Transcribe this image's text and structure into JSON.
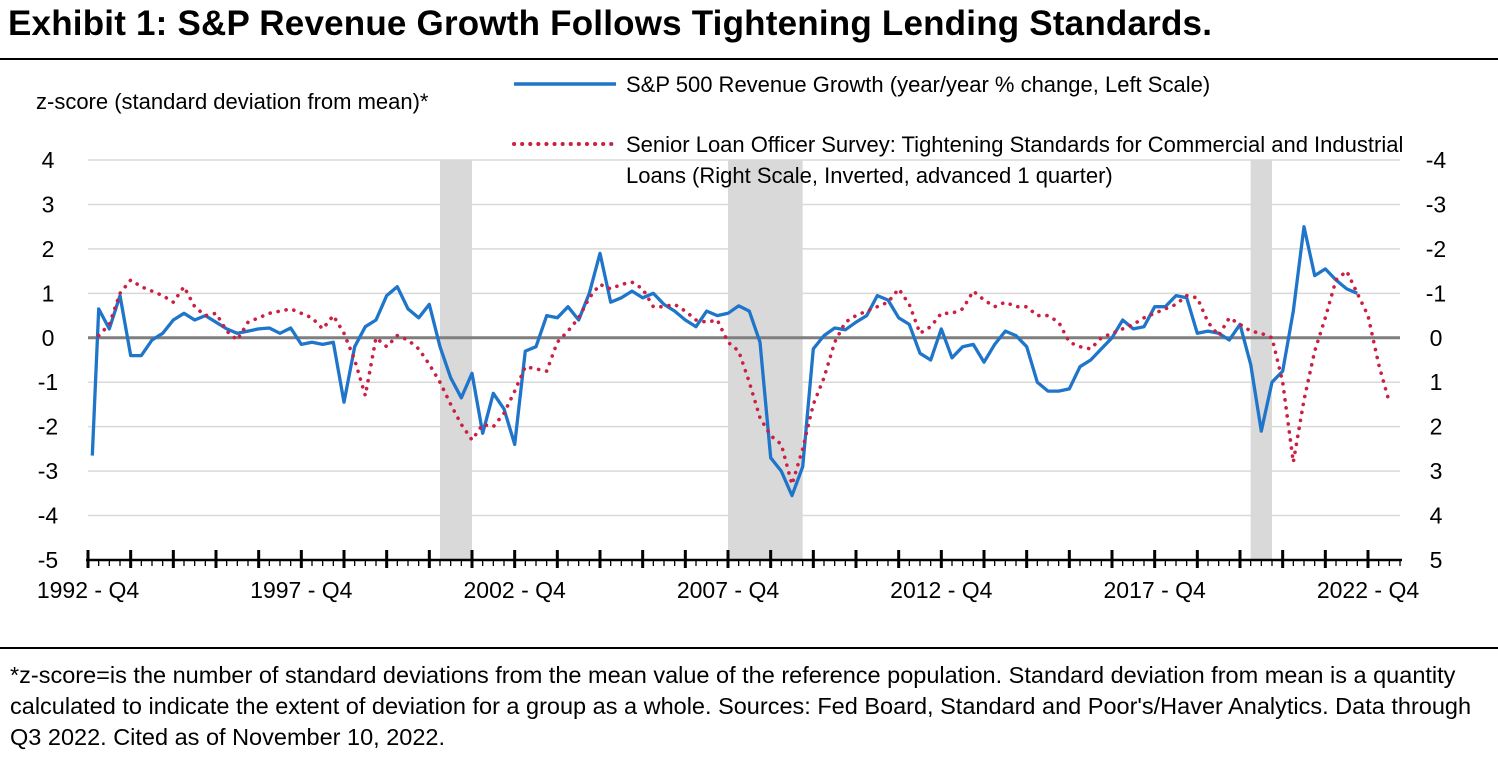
{
  "title": "Exhibit 1: S&P Revenue Growth Follows Tightening Lending Standards.",
  "footnote": "*z-score=is the number of standard deviations from the mean value of the reference population. Standard deviation from mean is a quantity calculated to indicate the extent of deviation for a group as a whole. Sources: Fed Board, Standard and Poor's/Haver Analytics. Data through Q3 2022. Cited as of November 10, 2022.",
  "colors": {
    "revenue": "#1f75c9",
    "survey": "#cc1f44",
    "zero_line": "#7f7f7f",
    "recession": "#d9d9d9",
    "grid": "#d9d9d9"
  },
  "chart_data": {
    "type": "line",
    "ylabel": "z-score (standard deviation from mean)*",
    "ylim": [
      -5,
      4
    ],
    "y2lim": [
      5,
      -4
    ],
    "y2_inverted": true,
    "grid": true,
    "legend_position": "top",
    "yticks": [
      "4",
      "3",
      "2",
      "1",
      "0",
      "-1",
      "-2",
      "-3",
      "-4",
      "-5"
    ],
    "y2ticks": [
      "-4",
      "-3",
      "-2",
      "-1",
      "0",
      "1",
      "2",
      "3",
      "4",
      "5"
    ],
    "xticks": [
      {
        "label": "1992 - Q4",
        "x": 1992.75
      },
      {
        "label": "1997 - Q4",
        "x": 1997.75
      },
      {
        "label": "2002 - Q4",
        "x": 2002.75
      },
      {
        "label": "2007 - Q4",
        "x": 2007.75
      },
      {
        "label": "2012 - Q4",
        "x": 2012.75
      },
      {
        "label": "2017 - Q4",
        "x": 2017.75
      },
      {
        "label": "2022 - Q4",
        "x": 2022.75
      }
    ],
    "xlim": [
      1992.75,
      2023.5
    ],
    "recessions": [
      [
        2001.0,
        2001.75
      ],
      [
        2007.75,
        2009.5
      ],
      [
        2020.0,
        2020.5
      ]
    ],
    "series": [
      {
        "name": "S&P 500 Revenue Growth (year/year % change, Left Scale)",
        "axis": "left",
        "style": "solid",
        "points": [
          [
            1992.85,
            -2.65
          ],
          [
            1993.0,
            0.65
          ],
          [
            1993.25,
            0.2
          ],
          [
            1993.5,
            0.95
          ],
          [
            1993.75,
            -0.4
          ],
          [
            1994.0,
            -0.4
          ],
          [
            1994.25,
            -0.05
          ],
          [
            1994.5,
            0.1
          ],
          [
            1994.75,
            0.4
          ],
          [
            1995.0,
            0.55
          ],
          [
            1995.25,
            0.4
          ],
          [
            1995.5,
            0.5
          ],
          [
            1995.75,
            0.35
          ],
          [
            1996.0,
            0.2
          ],
          [
            1996.25,
            0.1
          ],
          [
            1996.5,
            0.15
          ],
          [
            1996.75,
            0.2
          ],
          [
            1997.0,
            0.22
          ],
          [
            1997.25,
            0.1
          ],
          [
            1997.5,
            0.22
          ],
          [
            1997.75,
            -0.15
          ],
          [
            1998.0,
            -0.1
          ],
          [
            1998.25,
            -0.15
          ],
          [
            1998.5,
            -0.1
          ],
          [
            1998.75,
            -1.45
          ],
          [
            1999.0,
            -0.2
          ],
          [
            1999.25,
            0.25
          ],
          [
            1999.5,
            0.4
          ],
          [
            1999.75,
            0.95
          ],
          [
            2000.0,
            1.15
          ],
          [
            2000.25,
            0.65
          ],
          [
            2000.5,
            0.45
          ],
          [
            2000.75,
            0.75
          ],
          [
            2001.0,
            -0.2
          ],
          [
            2001.25,
            -0.9
          ],
          [
            2001.5,
            -1.35
          ],
          [
            2001.75,
            -0.8
          ],
          [
            2002.0,
            -2.15
          ],
          [
            2002.25,
            -1.25
          ],
          [
            2002.5,
            -1.6
          ],
          [
            2002.75,
            -2.4
          ],
          [
            2003.0,
            -0.3
          ],
          [
            2003.25,
            -0.2
          ],
          [
            2003.5,
            0.5
          ],
          [
            2003.75,
            0.45
          ],
          [
            2004.0,
            0.7
          ],
          [
            2004.25,
            0.4
          ],
          [
            2004.5,
            1.0
          ],
          [
            2004.75,
            1.9
          ],
          [
            2005.0,
            0.8
          ],
          [
            2005.25,
            0.9
          ],
          [
            2005.5,
            1.05
          ],
          [
            2005.75,
            0.9
          ],
          [
            2006.0,
            1.0
          ],
          [
            2006.25,
            0.75
          ],
          [
            2006.5,
            0.6
          ],
          [
            2006.75,
            0.4
          ],
          [
            2007.0,
            0.25
          ],
          [
            2007.25,
            0.6
          ],
          [
            2007.5,
            0.5
          ],
          [
            2007.75,
            0.55
          ],
          [
            2008.0,
            0.72
          ],
          [
            2008.25,
            0.6
          ],
          [
            2008.5,
            -0.1
          ],
          [
            2008.75,
            -2.7
          ],
          [
            2009.0,
            -3.0
          ],
          [
            2009.25,
            -3.55
          ],
          [
            2009.5,
            -2.9
          ],
          [
            2009.75,
            -0.25
          ],
          [
            2010.0,
            0.05
          ],
          [
            2010.25,
            0.22
          ],
          [
            2010.5,
            0.18
          ],
          [
            2010.75,
            0.35
          ],
          [
            2011.0,
            0.5
          ],
          [
            2011.25,
            0.95
          ],
          [
            2011.5,
            0.85
          ],
          [
            2011.75,
            0.45
          ],
          [
            2012.0,
            0.3
          ],
          [
            2012.25,
            -0.35
          ],
          [
            2012.5,
            -0.5
          ],
          [
            2012.75,
            0.2
          ],
          [
            2013.0,
            -0.45
          ],
          [
            2013.25,
            -0.2
          ],
          [
            2013.5,
            -0.15
          ],
          [
            2013.75,
            -0.55
          ],
          [
            2014.0,
            -0.15
          ],
          [
            2014.25,
            0.15
          ],
          [
            2014.5,
            0.05
          ],
          [
            2014.75,
            -0.2
          ],
          [
            2015.0,
            -1.0
          ],
          [
            2015.25,
            -1.2
          ],
          [
            2015.5,
            -1.2
          ],
          [
            2015.75,
            -1.15
          ],
          [
            2016.0,
            -0.65
          ],
          [
            2016.25,
            -0.5
          ],
          [
            2016.5,
            -0.25
          ],
          [
            2016.75,
            0.0
          ],
          [
            2017.0,
            0.4
          ],
          [
            2017.25,
            0.2
          ],
          [
            2017.5,
            0.25
          ],
          [
            2017.75,
            0.7
          ],
          [
            2018.0,
            0.7
          ],
          [
            2018.25,
            0.95
          ],
          [
            2018.5,
            0.9
          ],
          [
            2018.75,
            0.1
          ],
          [
            2019.0,
            0.15
          ],
          [
            2019.25,
            0.1
          ],
          [
            2019.5,
            -0.05
          ],
          [
            2019.75,
            0.3
          ],
          [
            2020.0,
            -0.6
          ],
          [
            2020.25,
            -2.1
          ],
          [
            2020.5,
            -1.0
          ],
          [
            2020.75,
            -0.75
          ],
          [
            2021.0,
            0.6
          ],
          [
            2021.25,
            2.5
          ],
          [
            2021.5,
            1.4
          ],
          [
            2021.75,
            1.55
          ],
          [
            2022.0,
            1.3
          ],
          [
            2022.25,
            1.1
          ],
          [
            2022.5,
            1.0
          ]
        ]
      },
      {
        "name": "Senior Loan Officer Survey: Tightening Standards for Commercial and Industrial Loans (Right Scale, Inverted, advanced 1 quarter)",
        "axis": "right",
        "style": "dotted",
        "points": [
          [
            1993.0,
            -0.05
          ],
          [
            1993.25,
            -0.3
          ],
          [
            1993.5,
            -1.0
          ],
          [
            1993.75,
            -1.3
          ],
          [
            1994.0,
            -1.15
          ],
          [
            1994.25,
            -1.05
          ],
          [
            1994.5,
            -0.95
          ],
          [
            1994.75,
            -0.8
          ],
          [
            1995.0,
            -1.15
          ],
          [
            1995.25,
            -0.7
          ],
          [
            1995.5,
            -0.5
          ],
          [
            1995.75,
            -0.55
          ],
          [
            1996.0,
            -0.15
          ],
          [
            1996.25,
            0.05
          ],
          [
            1996.5,
            -0.35
          ],
          [
            1996.75,
            -0.45
          ],
          [
            1997.0,
            -0.55
          ],
          [
            1997.25,
            -0.6
          ],
          [
            1997.5,
            -0.65
          ],
          [
            1997.75,
            -0.55
          ],
          [
            1998.0,
            -0.45
          ],
          [
            1998.25,
            -0.2
          ],
          [
            1998.5,
            -0.5
          ],
          [
            1998.75,
            -0.1
          ],
          [
            1999.0,
            0.5
          ],
          [
            1999.25,
            1.3
          ],
          [
            1999.5,
            0.0
          ],
          [
            1999.75,
            0.2
          ],
          [
            2000.0,
            -0.05
          ],
          [
            2000.25,
            0.05
          ],
          [
            2000.5,
            0.25
          ],
          [
            2000.75,
            0.6
          ],
          [
            2001.0,
            1.0
          ],
          [
            2001.25,
            1.5
          ],
          [
            2001.5,
            1.95
          ],
          [
            2001.75,
            2.3
          ],
          [
            2002.0,
            1.95
          ],
          [
            2002.25,
            2.0
          ],
          [
            2002.5,
            1.7
          ],
          [
            2002.75,
            1.2
          ],
          [
            2003.0,
            0.65
          ],
          [
            2003.25,
            0.7
          ],
          [
            2003.5,
            0.75
          ],
          [
            2003.75,
            0.1
          ],
          [
            2004.0,
            -0.15
          ],
          [
            2004.25,
            -0.45
          ],
          [
            2004.5,
            -0.9
          ],
          [
            2004.75,
            -1.2
          ],
          [
            2005.0,
            -1.1
          ],
          [
            2005.25,
            -1.2
          ],
          [
            2005.5,
            -1.25
          ],
          [
            2005.75,
            -1.1
          ],
          [
            2006.0,
            -0.7
          ],
          [
            2006.25,
            -0.7
          ],
          [
            2006.5,
            -0.75
          ],
          [
            2006.75,
            -0.6
          ],
          [
            2007.0,
            -0.4
          ],
          [
            2007.25,
            -0.35
          ],
          [
            2007.5,
            -0.4
          ],
          [
            2007.75,
            0.1
          ],
          [
            2008.0,
            0.3
          ],
          [
            2008.25,
            1.0
          ],
          [
            2008.5,
            1.8
          ],
          [
            2008.75,
            2.2
          ],
          [
            2009.0,
            2.4
          ],
          [
            2009.25,
            3.3
          ],
          [
            2009.5,
            2.5
          ],
          [
            2009.75,
            1.5
          ],
          [
            2010.0,
            0.9
          ],
          [
            2010.25,
            0.1
          ],
          [
            2010.5,
            -0.35
          ],
          [
            2010.75,
            -0.5
          ],
          [
            2011.0,
            -0.6
          ],
          [
            2011.25,
            -0.7
          ],
          [
            2011.5,
            -0.8
          ],
          [
            2011.75,
            -1.1
          ],
          [
            2012.0,
            -0.75
          ],
          [
            2012.25,
            -0.1
          ],
          [
            2012.5,
            -0.25
          ],
          [
            2012.75,
            -0.55
          ],
          [
            2013.0,
            -0.55
          ],
          [
            2013.25,
            -0.65
          ],
          [
            2013.5,
            -1.05
          ],
          [
            2013.75,
            -0.85
          ],
          [
            2014.0,
            -0.7
          ],
          [
            2014.25,
            -0.8
          ],
          [
            2014.5,
            -0.7
          ],
          [
            2014.75,
            -0.7
          ],
          [
            2015.0,
            -0.5
          ],
          [
            2015.25,
            -0.5
          ],
          [
            2015.5,
            -0.35
          ],
          [
            2015.75,
            0.1
          ],
          [
            2016.0,
            0.2
          ],
          [
            2016.25,
            0.25
          ],
          [
            2016.5,
            0.0
          ],
          [
            2016.75,
            -0.1
          ],
          [
            2017.0,
            -0.2
          ],
          [
            2017.25,
            -0.3
          ],
          [
            2017.5,
            -0.45
          ],
          [
            2017.75,
            -0.55
          ],
          [
            2018.0,
            -0.65
          ],
          [
            2018.25,
            -0.75
          ],
          [
            2018.5,
            -0.95
          ],
          [
            2018.75,
            -0.9
          ],
          [
            2019.0,
            -0.35
          ],
          [
            2019.25,
            -0.05
          ],
          [
            2019.5,
            -0.45
          ],
          [
            2019.75,
            -0.3
          ],
          [
            2020.0,
            -0.15
          ],
          [
            2020.25,
            -0.1
          ],
          [
            2020.5,
            0.0
          ],
          [
            2020.75,
            1.0
          ],
          [
            2021.0,
            2.8
          ],
          [
            2021.25,
            1.4
          ],
          [
            2021.5,
            0.3
          ],
          [
            2021.75,
            -0.45
          ],
          [
            2022.0,
            -1.3
          ],
          [
            2022.25,
            -1.5
          ],
          [
            2022.5,
            -1.0
          ],
          [
            2022.75,
            -0.5
          ],
          [
            2023.0,
            0.6
          ],
          [
            2023.25,
            1.45
          ]
        ]
      }
    ]
  }
}
